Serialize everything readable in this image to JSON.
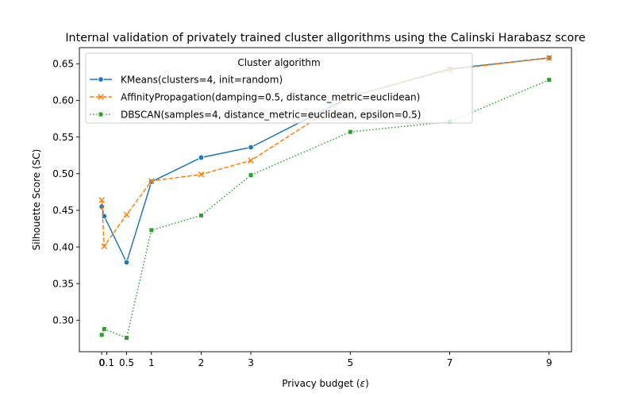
{
  "chart_data": {
    "type": "line",
    "title": "Internal validation of privately trained cluster allgorithms using the Calinski Harabasz score",
    "xlabel": "Privacy budget (ε)",
    "xlabel_text": "Privacy budget (",
    "xlabel_symbol": "ε",
    "xlabel_close": ")",
    "ylabel": "Silhouette Score (SC)",
    "x_ticks": [
      0,
      0.1,
      0.5,
      1,
      2,
      3,
      5,
      7,
      9
    ],
    "x_tick_labels": [
      "0",
      "0.1",
      "0.5",
      "1",
      "2",
      "3",
      "5",
      "7",
      "9"
    ],
    "y_ticks": [
      0.3,
      0.35,
      0.4,
      0.45,
      0.5,
      0.55,
      0.6,
      0.65
    ],
    "y_tick_labels": [
      "0.30",
      "0.35",
      "0.40",
      "0.45",
      "0.50",
      "0.55",
      "0.60",
      "0.65"
    ],
    "xlim": [
      -0.45,
      9.45
    ],
    "ylim": [
      0.257,
      0.672
    ],
    "grid": false,
    "legend": {
      "title": "Cluster algorithm",
      "placement": "upper-left"
    },
    "series": [
      {
        "name": "KMeans(clusters=4, init=random)",
        "color": "#1f77b4",
        "marker": "circle",
        "linestyle": "solid",
        "x": [
          0,
          0.05,
          0.5,
          1,
          2,
          3,
          5,
          7,
          9
        ],
        "y": [
          0.455,
          0.442,
          0.379,
          0.489,
          0.522,
          0.536,
          0.605,
          0.643,
          0.658
        ]
      },
      {
        "name": "AffinityPropagation(damping=0.5, distance_metric=euclidean)",
        "color": "#ff7f0e",
        "marker": "x",
        "linestyle": "dashed",
        "x": [
          0,
          0.05,
          0.5,
          1,
          2,
          3,
          5,
          7,
          9
        ],
        "y": [
          0.464,
          0.401,
          0.444,
          0.49,
          0.499,
          0.518,
          0.605,
          0.642,
          0.658
        ]
      },
      {
        "name": "DBSCAN(samples=4, distance_metric=euclidean, epsilon=0.5)",
        "color": "#2ca02c",
        "marker": "square",
        "linestyle": "dotted",
        "x": [
          0,
          0.05,
          0.5,
          1,
          2,
          3,
          5,
          7,
          9
        ],
        "y": [
          0.28,
          0.288,
          0.276,
          0.423,
          0.443,
          0.498,
          0.557,
          0.571,
          0.628
        ]
      }
    ]
  }
}
